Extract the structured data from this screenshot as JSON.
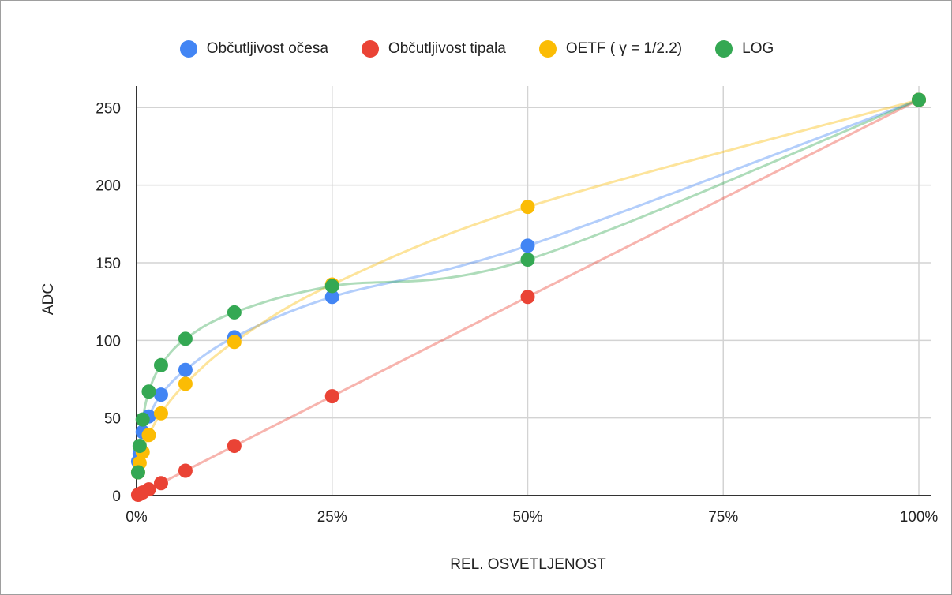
{
  "chart_data": {
    "type": "line",
    "xlabel": "REL. OSVETLJENOST",
    "ylabel": "ADC",
    "xlim": [
      0,
      1
    ],
    "ylim": [
      0,
      256
    ],
    "x_ticks": [
      {
        "value": 0,
        "label": "0%"
      },
      {
        "value": 0.25,
        "label": "25%"
      },
      {
        "value": 0.5,
        "label": "50%"
      },
      {
        "value": 0.75,
        "label": "75%"
      },
      {
        "value": 1,
        "label": "100%"
      }
    ],
    "y_ticks": [
      {
        "value": 0,
        "label": "0"
      },
      {
        "value": 50,
        "label": "50"
      },
      {
        "value": 100,
        "label": "100"
      },
      {
        "value": 150,
        "label": "150"
      },
      {
        "value": 200,
        "label": "200"
      },
      {
        "value": 250,
        "label": "250"
      }
    ],
    "grid": true,
    "legend_position": "top",
    "series": [
      {
        "name": "Občutljivost očesa",
        "color": "#4285f4",
        "points": [
          [
            0.00195,
            22
          ],
          [
            0.00391,
            27
          ],
          [
            0.00781,
            41
          ],
          [
            0.0156,
            51
          ],
          [
            0.03125,
            65
          ],
          [
            0.0625,
            81
          ],
          [
            0.125,
            102
          ],
          [
            0.25,
            128
          ],
          [
            0.5,
            161
          ],
          [
            1.0,
            255
          ]
        ]
      },
      {
        "name": "Občutljivost tipala",
        "color": "#ea4335",
        "points": [
          [
            0.00195,
            0.5
          ],
          [
            0.00391,
            1
          ],
          [
            0.00781,
            2
          ],
          [
            0.0156,
            4
          ],
          [
            0.03125,
            8
          ],
          [
            0.0625,
            16
          ],
          [
            0.125,
            32
          ],
          [
            0.25,
            64
          ],
          [
            0.5,
            128
          ],
          [
            1.0,
            255
          ]
        ]
      },
      {
        "name": "OETF ( γ = 1/2.2)",
        "color": "#fbbc04",
        "points": [
          [
            0.00195,
            15
          ],
          [
            0.00391,
            21
          ],
          [
            0.00781,
            28
          ],
          [
            0.0156,
            39
          ],
          [
            0.03125,
            53
          ],
          [
            0.0625,
            72
          ],
          [
            0.125,
            99
          ],
          [
            0.25,
            136
          ],
          [
            0.5,
            186
          ],
          [
            1.0,
            255
          ]
        ]
      },
      {
        "name": "LOG",
        "color": "#34a853",
        "points": [
          [
            0.00195,
            15
          ],
          [
            0.00391,
            32
          ],
          [
            0.00781,
            49
          ],
          [
            0.0156,
            67
          ],
          [
            0.03125,
            84
          ],
          [
            0.0625,
            101
          ],
          [
            0.125,
            118
          ],
          [
            0.25,
            135
          ],
          [
            0.5,
            152
          ],
          [
            1.0,
            255
          ]
        ]
      }
    ]
  }
}
